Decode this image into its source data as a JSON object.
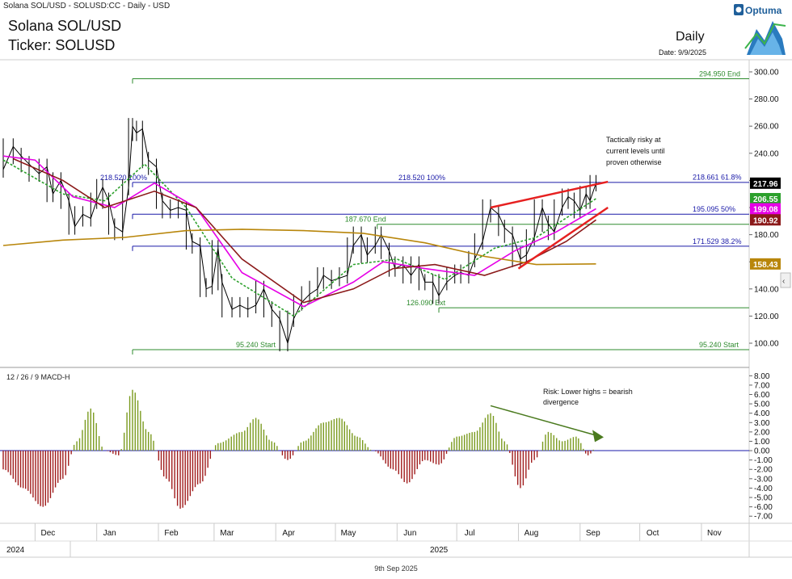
{
  "header": {
    "symbol_line": "Solana SOL/USD - SOLUSD:CC - Daily - USD",
    "title": "Solana SOL/USD",
    "ticker": "Ticker: SOLUSD",
    "period": "Daily",
    "date": "Date: 9/9/2025",
    "logo_text": "Optuma"
  },
  "footer": {
    "date": "9th Sep 2025"
  },
  "chart_data": [
    {
      "type": "line",
      "panel": "price",
      "y_axis_ticks": [
        "300.00",
        "280.00",
        "260.00",
        "240.00",
        "220.00",
        "200.00",
        "180.00",
        "160.00",
        "140.00",
        "120.00",
        "100.00"
      ],
      "ylim": [
        95,
        305
      ],
      "x_axis_months": [
        "Dec",
        "Jan",
        "Feb",
        "Mar",
        "Apr",
        "May",
        "Jun",
        "Jul",
        "Aug",
        "Sep",
        "Oct",
        "Nov"
      ],
      "x_axis_years": [
        "2024",
        "2025"
      ],
      "x_start": "2024-11-15",
      "x_end": "2025-11-25",
      "series": [
        {
          "color": "#000000",
          "style": "ohlc",
          "points": [
            [
              "2024-11-15",
              228
            ],
            [
              "2024-11-20",
              245
            ],
            [
              "2024-11-24",
              238
            ],
            [
              "2024-11-28",
              232
            ],
            [
              "2024-12-03",
              225
            ],
            [
              "2024-12-07",
              230
            ],
            [
              "2024-12-10",
              210
            ],
            [
              "2024-12-14",
              220
            ],
            [
              "2024-12-18",
              205
            ],
            [
              "2024-12-21",
              186
            ],
            [
              "2024-12-25",
              195
            ],
            [
              "2024-12-29",
              192
            ],
            [
              "2025-01-01",
              205
            ],
            [
              "2025-01-04",
              215
            ],
            [
              "2025-01-07",
              205
            ],
            [
              "2025-01-10",
              186
            ],
            [
              "2025-01-14",
              182
            ],
            [
              "2025-01-17",
              215
            ],
            [
              "2025-01-19",
              260
            ],
            [
              "2025-01-21",
              255
            ],
            [
              "2025-01-24",
              258
            ],
            [
              "2025-01-27",
              235
            ],
            [
              "2025-01-31",
              230
            ],
            [
              "2025-02-03",
              205
            ],
            [
              "2025-02-07",
              198
            ],
            [
              "2025-02-11",
              200
            ],
            [
              "2025-02-15",
              198
            ],
            [
              "2025-02-18",
              175
            ],
            [
              "2025-02-22",
              172
            ],
            [
              "2025-02-25",
              140
            ],
            [
              "2025-02-28",
              142
            ],
            [
              "2025-03-03",
              170
            ],
            [
              "2025-03-05",
              145
            ],
            [
              "2025-03-10",
              125
            ],
            [
              "2025-03-14",
              128
            ],
            [
              "2025-03-18",
              125
            ],
            [
              "2025-03-22",
              128
            ],
            [
              "2025-03-26",
              140
            ],
            [
              "2025-03-30",
              125
            ],
            [
              "2025-04-03",
              118
            ],
            [
              "2025-04-07",
              100
            ],
            [
              "2025-04-10",
              118
            ],
            [
              "2025-04-14",
              130
            ],
            [
              "2025-04-18",
              136
            ],
            [
              "2025-04-22",
              140
            ],
            [
              "2025-04-25",
              150
            ],
            [
              "2025-04-29",
              146
            ],
            [
              "2025-05-03",
              148
            ],
            [
              "2025-05-07",
              150
            ],
            [
              "2025-05-10",
              172
            ],
            [
              "2025-05-14",
              180
            ],
            [
              "2025-05-17",
              165
            ],
            [
              "2025-05-21",
              172
            ],
            [
              "2025-05-24",
              180
            ],
            [
              "2025-05-28",
              168
            ],
            [
              "2025-05-31",
              155
            ],
            [
              "2025-06-04",
              158
            ],
            [
              "2025-06-08",
              150
            ],
            [
              "2025-06-12",
              158
            ],
            [
              "2025-06-15",
              145
            ],
            [
              "2025-06-19",
              145
            ],
            [
              "2025-06-22",
              135
            ],
            [
              "2025-06-26",
              145
            ],
            [
              "2025-06-30",
              150
            ],
            [
              "2025-07-03",
              152
            ],
            [
              "2025-07-07",
              150
            ],
            [
              "2025-07-10",
              162
            ],
            [
              "2025-07-14",
              175
            ],
            [
              "2025-07-18",
              200
            ],
            [
              "2025-07-22",
              195
            ],
            [
              "2025-07-25",
              185
            ],
            [
              "2025-07-29",
              180
            ],
            [
              "2025-08-02",
              162
            ],
            [
              "2025-08-05",
              165
            ],
            [
              "2025-08-09",
              178
            ],
            [
              "2025-08-13",
              200
            ],
            [
              "2025-08-16",
              188
            ],
            [
              "2025-08-19",
              182
            ],
            [
              "2025-08-23",
              200
            ],
            [
              "2025-08-26",
              208
            ],
            [
              "2025-08-29",
              205
            ],
            [
              "2025-09-01",
              198
            ],
            [
              "2025-09-04",
              210
            ],
            [
              "2025-09-06",
              205
            ],
            [
              "2025-09-09",
              217.96
            ]
          ]
        },
        {
          "color": "#2ca02c",
          "style": "dashed",
          "label": "206.55",
          "points": [
            [
              "2024-11-15",
              235
            ],
            [
              "2024-12-15",
              210
            ],
            [
              "2025-01-05",
              205
            ],
            [
              "2025-01-25",
              232
            ],
            [
              "2025-02-15",
              200
            ],
            [
              "2025-03-10",
              148
            ],
            [
              "2025-04-10",
              120
            ],
            [
              "2025-05-10",
              158
            ],
            [
              "2025-06-01",
              162
            ],
            [
              "2025-06-25",
              147
            ],
            [
              "2025-07-20",
              170
            ],
            [
              "2025-08-10",
              178
            ],
            [
              "2025-09-09",
              206.55
            ]
          ]
        },
        {
          "color": "#e600e6",
          "style": "solid",
          "label": "199.08",
          "points": [
            [
              "2024-11-15",
              238
            ],
            [
              "2024-12-01",
              235
            ],
            [
              "2024-12-20",
              208
            ],
            [
              "2025-01-10",
              200
            ],
            [
              "2025-01-30",
              218
            ],
            [
              "2025-02-20",
              200
            ],
            [
              "2025-03-15",
              152
            ],
            [
              "2025-04-15",
              127
            ],
            [
              "2025-05-10",
              145
            ],
            [
              "2025-05-25",
              160
            ],
            [
              "2025-06-15",
              155
            ],
            [
              "2025-07-10",
              150
            ],
            [
              "2025-07-30",
              168
            ],
            [
              "2025-08-20",
              182
            ],
            [
              "2025-09-09",
              199.08
            ]
          ]
        },
        {
          "color": "#8b1a1a",
          "style": "solid",
          "label": "190.92",
          "points": [
            [
              "2024-11-20",
              236
            ],
            [
              "2024-12-15",
              220
            ],
            [
              "2025-01-05",
              200
            ],
            [
              "2025-01-30",
              212
            ],
            [
              "2025-02-20",
              200
            ],
            [
              "2025-03-15",
              162
            ],
            [
              "2025-04-15",
              130
            ],
            [
              "2025-05-10",
              140
            ],
            [
              "2025-05-30",
              155
            ],
            [
              "2025-06-20",
              158
            ],
            [
              "2025-07-15",
              150
            ],
            [
              "2025-08-05",
              160
            ],
            [
              "2025-08-25",
              175
            ],
            [
              "2025-09-09",
              190.92
            ]
          ]
        },
        {
          "color": "#b8860b",
          "style": "solid",
          "label": "158.43",
          "points": [
            [
              "2024-11-15",
              172
            ],
            [
              "2024-12-15",
              176
            ],
            [
              "2025-01-15",
              178
            ],
            [
              "2025-02-15",
              183
            ],
            [
              "2025-03-15",
              184
            ],
            [
              "2025-04-15",
              183
            ],
            [
              "2025-05-15",
              181
            ],
            [
              "2025-06-15",
              174
            ],
            [
              "2025-07-15",
              164
            ],
            [
              "2025-08-10",
              158
            ],
            [
              "2025-09-09",
              158.43
            ]
          ]
        }
      ],
      "price_label": {
        "value": "217.96",
        "color": "#000000"
      },
      "levels": [
        {
          "value": 294.95,
          "text": "294.950   End",
          "color": "#2e8b2e",
          "from": "2025-01-19"
        },
        {
          "value": 218.52,
          "text": "218.520   100%",
          "color": "#1a1aa8",
          "from": "2025-01-19"
        },
        {
          "value": 218.661,
          "text": "218.661   61.8%",
          "color": "#1a1aa8",
          "from": "2025-09-09",
          "hidden_line": true
        },
        {
          "value": 195.095,
          "text": "195.095   50%",
          "color": "#1a1aa8",
          "from": "2025-01-19"
        },
        {
          "value": 187.67,
          "text": "187.670   End",
          "color": "#2e8b2e",
          "from": "2025-05-22"
        },
        {
          "value": 171.529,
          "text": "171.529   38.2%",
          "color": "#1a1aa8",
          "from": "2025-01-19"
        },
        {
          "value": 126.09,
          "text": "126.090   Ext",
          "color": "#2e8b2e",
          "from": "2025-06-22"
        },
        {
          "value": 95.24,
          "text": "95.240   Start",
          "color": "#2e8b2e",
          "from": "2025-01-19"
        }
      ],
      "trendlines": [
        {
          "color": "#e62020",
          "from": [
            "2025-07-18",
            200
          ],
          "to": [
            "2025-09-15",
            219
          ]
        },
        {
          "color": "#e62020",
          "from": [
            "2025-08-01",
            155
          ],
          "to": [
            "2025-09-15",
            200
          ]
        }
      ],
      "annotations": [
        "Tactically risky at",
        "current levels until",
        "proven otherwise"
      ]
    },
    {
      "type": "bar",
      "panel": "macd",
      "label": "12 / 26 / 9 MACD-H",
      "y_axis_ticks": [
        "8.00",
        "7.00",
        "6.00",
        "5.00",
        "4.00",
        "3.00",
        "2.00",
        "1.00",
        "0.00",
        "-1.00",
        "-2.00",
        "-3.00",
        "-4.00",
        "-5.00",
        "-6.00",
        "-7.00"
      ],
      "ylim": [
        -7.5,
        8.2
      ],
      "pos_color": "#7a9a1e",
      "neg_color": "#a01c1c",
      "points": [
        [
          "2024-11-15",
          -2
        ],
        [
          "2024-11-25",
          -4
        ],
        [
          "2024-12-05",
          -6
        ],
        [
          "2024-12-15",
          -3
        ],
        [
          "2024-12-22",
          1
        ],
        [
          "2024-12-29",
          4.5
        ],
        [
          "2025-01-05",
          0
        ],
        [
          "2025-01-12",
          -0.5
        ],
        [
          "2025-01-19",
          6.5
        ],
        [
          "2025-01-27",
          2
        ],
        [
          "2025-02-05",
          -3
        ],
        [
          "2025-02-12",
          -6.2
        ],
        [
          "2025-02-22",
          -3.5
        ],
        [
          "2025-03-03",
          0.8
        ],
        [
          "2025-03-15",
          2
        ],
        [
          "2025-03-22",
          3.5
        ],
        [
          "2025-03-30",
          1
        ],
        [
          "2025-04-07",
          -1
        ],
        [
          "2025-04-15",
          1
        ],
        [
          "2025-04-25",
          3
        ],
        [
          "2025-05-03",
          3.5
        ],
        [
          "2025-05-12",
          1.5
        ],
        [
          "2025-05-20",
          0
        ],
        [
          "2025-05-30",
          -2
        ],
        [
          "2025-06-06",
          -3.5
        ],
        [
          "2025-06-15",
          -1
        ],
        [
          "2025-06-22",
          -1.5
        ],
        [
          "2025-07-01",
          1.5
        ],
        [
          "2025-07-10",
          2
        ],
        [
          "2025-07-18",
          4
        ],
        [
          "2025-07-25",
          1
        ],
        [
          "2025-08-02",
          -4
        ],
        [
          "2025-08-09",
          -1
        ],
        [
          "2025-08-16",
          2
        ],
        [
          "2025-08-23",
          1
        ],
        [
          "2025-08-30",
          1.5
        ],
        [
          "2025-09-05",
          -0.5
        ],
        [
          "2025-09-09",
          0.3
        ]
      ],
      "trendline": {
        "color": "#4a7a1e",
        "from": [
          "2025-07-18",
          4.8
        ],
        "to": [
          "2025-09-08",
          1.7
        ]
      },
      "annotations": [
        "Risk: Lower highs = bearish",
        "divergence"
      ]
    }
  ]
}
